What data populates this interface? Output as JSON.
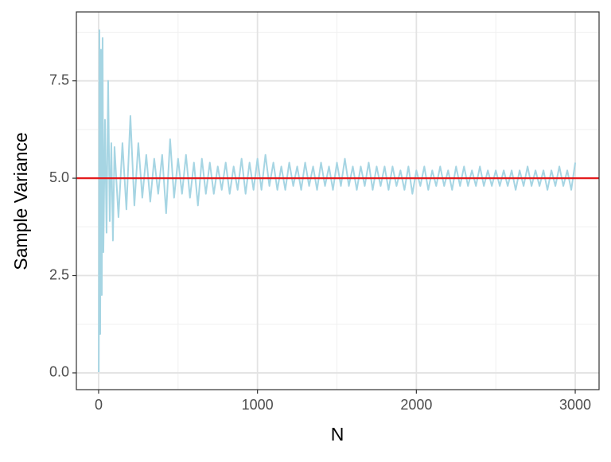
{
  "chart_data": {
    "type": "line",
    "x_label": "N",
    "y_label": "Sample Variance",
    "x": [
      1,
      5,
      10,
      15,
      20,
      25,
      30,
      40,
      50,
      60,
      70,
      80,
      90,
      100,
      125,
      150,
      175,
      200,
      225,
      250,
      275,
      300,
      325,
      350,
      375,
      400,
      425,
      450,
      475,
      500,
      525,
      550,
      575,
      600,
      625,
      650,
      675,
      700,
      725,
      750,
      775,
      800,
      825,
      850,
      875,
      900,
      925,
      950,
      975,
      1000,
      1025,
      1050,
      1075,
      1100,
      1125,
      1150,
      1175,
      1200,
      1225,
      1250,
      1275,
      1300,
      1325,
      1350,
      1375,
      1400,
      1425,
      1450,
      1475,
      1500,
      1525,
      1550,
      1575,
      1600,
      1625,
      1650,
      1675,
      1700,
      1725,
      1750,
      1775,
      1800,
      1825,
      1850,
      1875,
      1900,
      1925,
      1950,
      1975,
      2000,
      2025,
      2050,
      2075,
      2100,
      2125,
      2150,
      2175,
      2200,
      2225,
      2250,
      2275,
      2300,
      2325,
      2350,
      2375,
      2400,
      2425,
      2450,
      2475,
      2500,
      2525,
      2550,
      2575,
      2600,
      2625,
      2650,
      2675,
      2700,
      2725,
      2750,
      2775,
      2800,
      2825,
      2850,
      2875,
      2900,
      2925,
      2950,
      2975,
      3000
    ],
    "values": [
      0.02,
      8.8,
      1.0,
      8.3,
      2.0,
      8.6,
      3.1,
      6.5,
      3.6,
      7.5,
      3.9,
      5.9,
      3.4,
      5.8,
      4.0,
      5.9,
      4.2,
      6.6,
      4.3,
      5.9,
      4.5,
      5.6,
      4.4,
      5.5,
      4.6,
      5.6,
      4.1,
      6.0,
      4.5,
      5.5,
      4.6,
      5.6,
      4.5,
      5.4,
      4.3,
      5.5,
      4.6,
      5.4,
      4.6,
      5.3,
      4.7,
      5.4,
      4.6,
      5.3,
      4.7,
      5.5,
      4.6,
      5.4,
      4.7,
      5.5,
      4.7,
      5.6,
      4.8,
      5.4,
      4.7,
      5.3,
      4.7,
      5.4,
      4.8,
      5.3,
      4.7,
      5.4,
      4.8,
      5.3,
      4.7,
      5.4,
      4.8,
      5.3,
      4.7,
      5.4,
      4.8,
      5.5,
      4.8,
      5.3,
      4.7,
      5.3,
      4.8,
      5.4,
      4.7,
      5.3,
      4.8,
      5.3,
      4.7,
      5.3,
      4.8,
      5.2,
      4.7,
      5.3,
      4.6,
      5.2,
      4.8,
      5.3,
      4.7,
      5.2,
      4.8,
      5.3,
      4.8,
      5.2,
      4.7,
      5.3,
      4.8,
      5.3,
      4.8,
      5.2,
      4.8,
      5.3,
      4.8,
      5.2,
      4.8,
      5.2,
      4.8,
      5.2,
      4.8,
      5.2,
      4.7,
      5.2,
      4.8,
      5.3,
      4.8,
      5.2,
      4.8,
      5.2,
      4.7,
      5.2,
      4.8,
      5.3,
      4.8,
      5.2,
      4.7,
      5.4
    ],
    "color": "#a6d5e3",
    "reference_line": {
      "value": 5,
      "color": "#e41a1c"
    },
    "xlim": [
      -140,
      3150
    ],
    "ylim": [
      -0.43,
      9.27
    ],
    "xticks": [
      0,
      1000,
      2000,
      3000
    ],
    "yticks": [
      {
        "value": 0,
        "label": "0.0"
      },
      2.5,
      {
        "value": 5,
        "label": "5.0"
      },
      7.5
    ],
    "minor_xticks": [
      500,
      1500,
      2500
    ],
    "minor_yticks": [
      1.25,
      3.75,
      6.25,
      8.75
    ],
    "grid": true
  }
}
